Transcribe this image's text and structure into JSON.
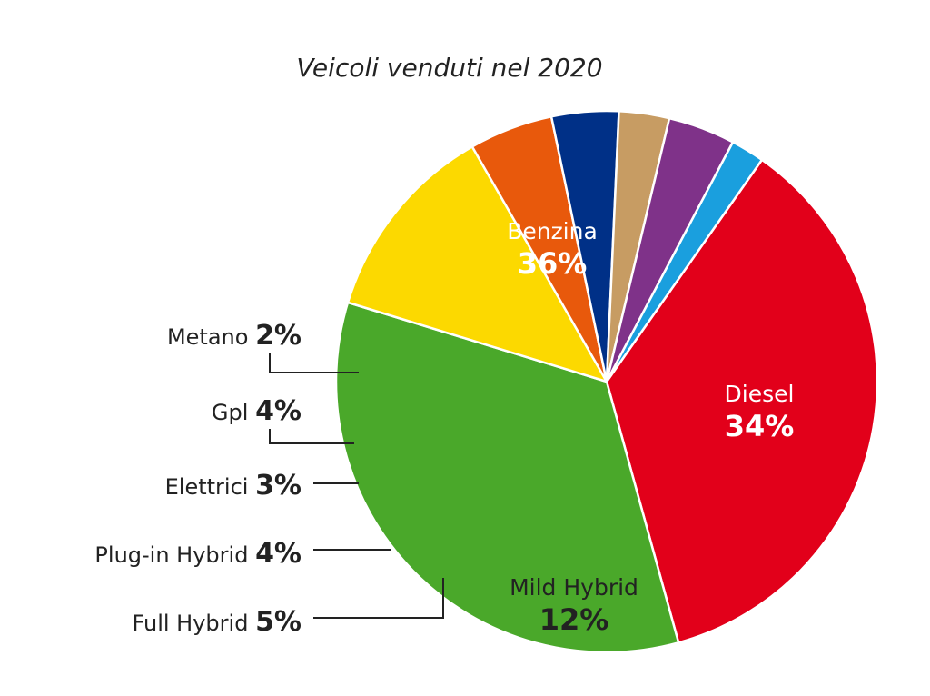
{
  "chart_data": {
    "type": "pie",
    "title": "Veicoli venduti nel 2020",
    "slices": [
      {
        "label": "Benzina",
        "value": 36,
        "value_text": "36%",
        "color": "#e2001a",
        "label_style": "inside-white"
      },
      {
        "label": "Diesel",
        "value": 34,
        "value_text": "34%",
        "color": "#4aa82a",
        "label_style": "inside-white"
      },
      {
        "label": "Mild Hybrid",
        "value": 12,
        "value_text": "12%",
        "color": "#fcd900",
        "label_style": "inside-dark"
      },
      {
        "label": "Full Hybrid",
        "value": 5,
        "value_text": "5%",
        "color": "#e8590c",
        "label_style": "outside"
      },
      {
        "label": "Plug-in Hybrid",
        "value": 4,
        "value_text": "4%",
        "color": "#003087",
        "label_style": "outside"
      },
      {
        "label": "Elettrici",
        "value": 3,
        "value_text": "3%",
        "color": "#c79c63",
        "label_style": "outside"
      },
      {
        "label": "Gpl",
        "value": 4,
        "value_text": "4%",
        "color": "#7f3289",
        "label_style": "outside"
      },
      {
        "label": "Metano",
        "value": 2,
        "value_text": "2%",
        "color": "#1a9fde",
        "label_style": "outside"
      }
    ]
  }
}
